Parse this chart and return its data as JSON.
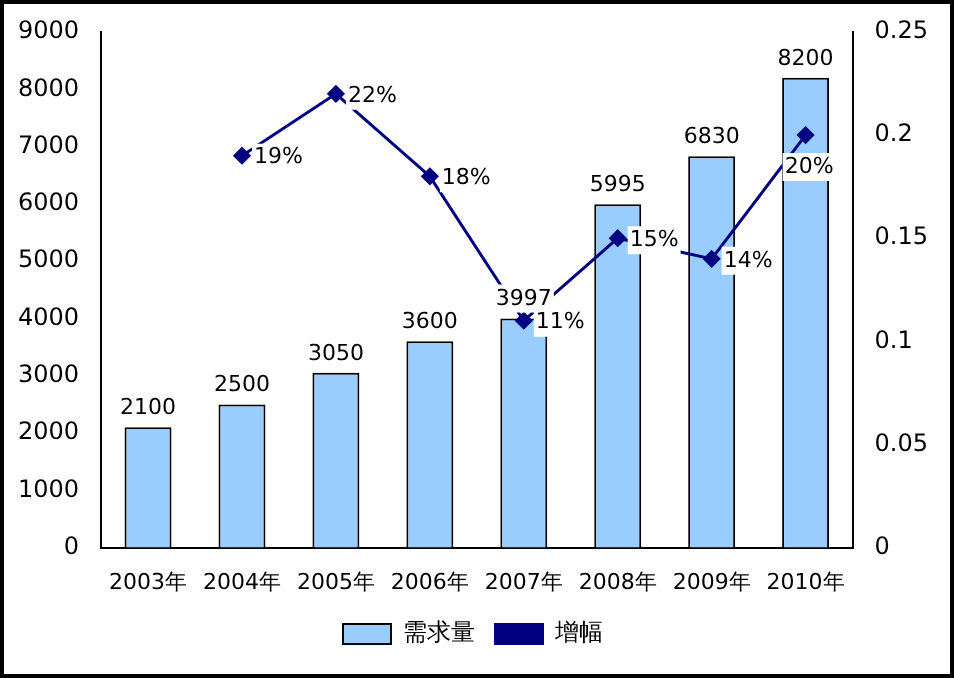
{
  "chart_data": {
    "type": "bar",
    "categories": [
      "2003年",
      "2004年",
      "2005年",
      "2006年",
      "2007年",
      "2008年",
      "2009年",
      "2010年"
    ],
    "series": [
      {
        "name": "需求量",
        "color": "#99ccff",
        "values": [
          2100,
          2500,
          3050,
          3600,
          3997,
          5995,
          6830,
          8200
        ],
        "value_labels": [
          "2100",
          "2500",
          "3050",
          "3600",
          "3997",
          "5995",
          "6830",
          "8200"
        ]
      },
      {
        "name": "增幅",
        "type": "line",
        "axis": "y2",
        "color": "#000080",
        "values": [
          null,
          0.19,
          0.22,
          0.18,
          0.11,
          0.15,
          0.14,
          0.2
        ],
        "value_labels": [
          null,
          "19%",
          "22%",
          "18%",
          "11%",
          "15%",
          "14%",
          "20%"
        ]
      }
    ],
    "ylim": [
      0,
      9000
    ],
    "yticks": [
      0,
      1000,
      2000,
      3000,
      4000,
      5000,
      6000,
      7000,
      8000,
      9000
    ],
    "y2lim": [
      0,
      0.25
    ],
    "y2ticks": [
      0,
      0.05,
      0.1,
      0.15,
      0.2,
      0.25
    ],
    "grid": false,
    "legend": "bottom",
    "marker": "diamond",
    "line_style": "solid"
  }
}
